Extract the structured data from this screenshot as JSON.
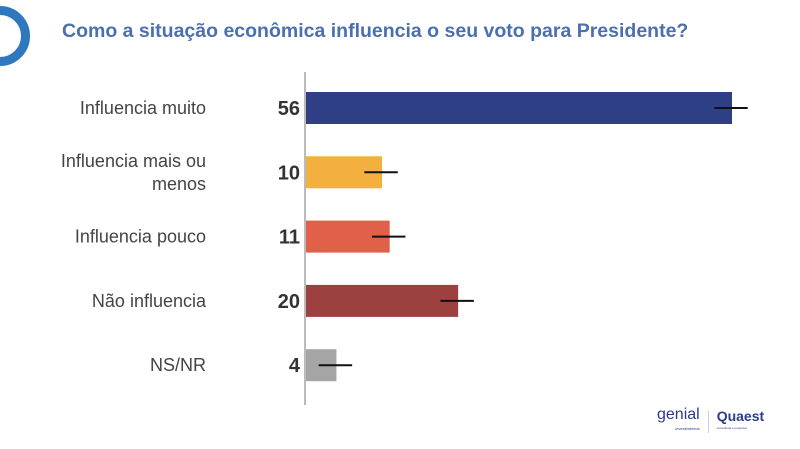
{
  "title": "Como a situação econômica influencia o seu voto para Presidente?",
  "logos": {
    "genial": "genial",
    "genial_sub": "investimentos",
    "quaest": "Quaest",
    "quaest_sub": "consultoria e pesquisa"
  },
  "chart_data": {
    "type": "bar",
    "orientation": "horizontal",
    "title": "Como a situação econômica influencia o seu voto para Presidente?",
    "categories": [
      [
        "Influencia muito"
      ],
      [
        "Influencia mais ou",
        "menos"
      ],
      [
        "Influencia pouco"
      ],
      [
        "Não influencia"
      ],
      [
        "NS/NR"
      ]
    ],
    "values": [
      56,
      10,
      11,
      20,
      4
    ],
    "error_margin": 2.2,
    "colors": [
      "#2e3f86",
      "#f3b03e",
      "#e0604a",
      "#9d4140",
      "#a5a5a5"
    ],
    "xlim": [
      0,
      60
    ],
    "grid": false
  }
}
